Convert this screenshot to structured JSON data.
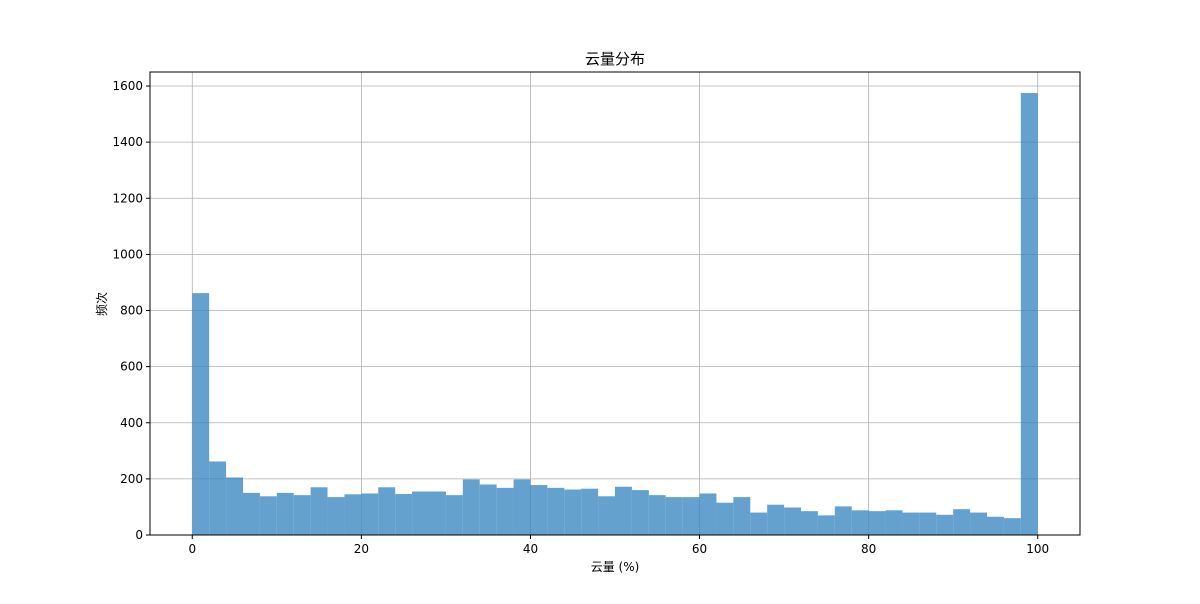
{
  "chart_data": {
    "type": "bar",
    "title": "云量分布",
    "xlabel": "云量 (%)",
    "ylabel": "频次",
    "xlim": [
      -5,
      105
    ],
    "ylim": [
      0,
      1650
    ],
    "xticks": [
      0,
      20,
      40,
      60,
      80,
      100
    ],
    "yticks": [
      0,
      200,
      400,
      600,
      800,
      1000,
      1200,
      1400,
      1600
    ],
    "grid": true,
    "bar_color": "#3182bd",
    "bar_opacity": 0.75,
    "bin_width": 2,
    "bin_edges_start": [
      0,
      2,
      4,
      6,
      8,
      10,
      12,
      14,
      16,
      18,
      20,
      22,
      24,
      26,
      28,
      30,
      32,
      34,
      36,
      38,
      40,
      42,
      44,
      46,
      48,
      50,
      52,
      54,
      56,
      58,
      60,
      62,
      64,
      66,
      68,
      70,
      72,
      74,
      76,
      78,
      80,
      82,
      84,
      86,
      88,
      90,
      92,
      94,
      96,
      98
    ],
    "values": [
      862,
      262,
      205,
      150,
      138,
      150,
      142,
      170,
      135,
      145,
      148,
      170,
      146,
      155,
      155,
      142,
      198,
      180,
      168,
      198,
      178,
      168,
      162,
      165,
      138,
      172,
      160,
      142,
      135,
      135,
      148,
      115,
      135,
      80,
      108,
      98,
      85,
      70,
      102,
      88,
      85,
      88,
      80,
      80,
      72,
      92,
      80,
      65,
      60,
      1575
    ]
  }
}
